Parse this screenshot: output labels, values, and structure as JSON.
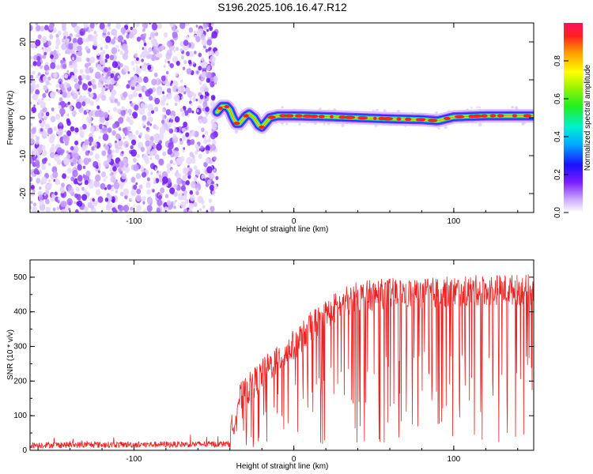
{
  "title": "S196.2025.106.16.47.R12",
  "chart_data": [
    {
      "type": "heatmap",
      "xlabel": "Height of straight line (km)",
      "ylabel": "Frequency (Hz)",
      "xlim": [
        -165,
        150
      ],
      "ylim": [
        -25,
        25
      ],
      "x_ticks": [
        -100,
        0,
        100
      ],
      "y_ticks": [
        -20,
        -10,
        0,
        10,
        20
      ],
      "colorbar": {
        "label": "Normalized spectral amplitude",
        "range": [
          0,
          1
        ],
        "ticks": [
          0.0,
          0.2,
          0.4,
          0.6,
          0.8
        ]
      },
      "noise_region_x": [
        -165,
        -48
      ],
      "signal_track": {
        "x": [
          -48,
          -45,
          -42,
          -40,
          -38,
          -36,
          -34,
          -32,
          -30,
          -28,
          -25,
          -22,
          -20,
          -18,
          -15,
          -10,
          -5,
          0,
          20,
          40,
          60,
          80,
          90,
          100,
          120,
          150
        ],
        "y": [
          1.5,
          3,
          3,
          2,
          0,
          -1.5,
          -1.5,
          -0.5,
          0.5,
          1,
          0,
          -2,
          -2.5,
          -1.5,
          0,
          0.5,
          0.5,
          0.5,
          0.3,
          0,
          -0.3,
          -0.5,
          -0.8,
          0.2,
          0.5,
          0.5
        ]
      }
    },
    {
      "type": "line",
      "xlabel": "Height of straight line (km)",
      "ylabel": "SNR (10 * v/v)",
      "xlim": [
        -165,
        150
      ],
      "ylim": [
        0,
        550
      ],
      "x_ticks": [
        -100,
        0,
        100
      ],
      "y_ticks": [
        0,
        100,
        200,
        300,
        400,
        500
      ],
      "color": "#ee2222",
      "envelope": {
        "x": [
          -165,
          -40,
          -35,
          -25,
          -15,
          0,
          10,
          20,
          30,
          40,
          60,
          80,
          100,
          120,
          150
        ],
        "y": [
          15,
          18,
          130,
          180,
          230,
          290,
          340,
          380,
          410,
          430,
          440,
          440,
          445,
          450,
          450
        ]
      }
    }
  ]
}
